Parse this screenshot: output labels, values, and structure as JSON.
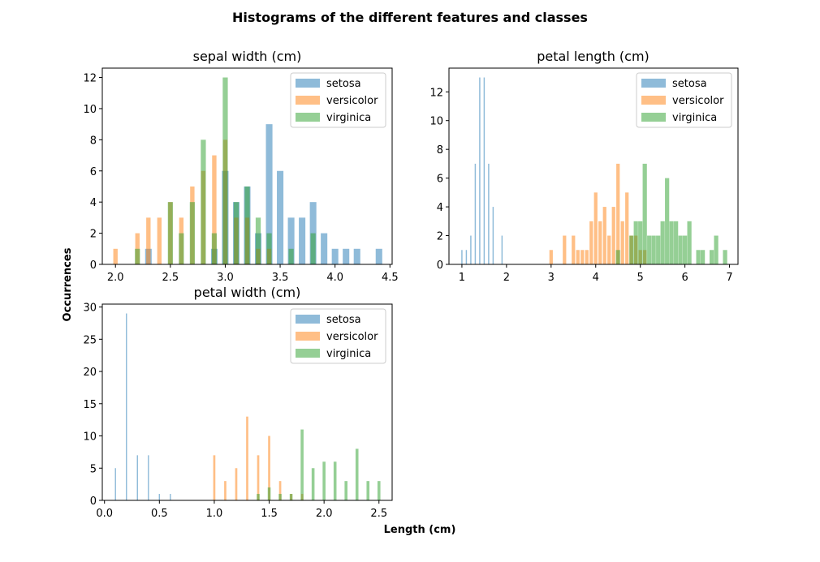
{
  "figure_title": "Histograms of the different features and classes",
  "xlabel": "Length (cm)",
  "ylabel": "Occurrences",
  "colors": {
    "setosa": "#1f77b4",
    "versicolor": "#ff7f0e",
    "virginica": "#2ca02c"
  },
  "bar_alpha": 0.5,
  "chart_data": [
    {
      "type": "bar",
      "title": "sepal width (cm)",
      "xlim": [
        1.88,
        4.52
      ],
      "ylim": [
        0,
        12.6
      ],
      "xticks": [
        2.0,
        2.5,
        3.0,
        3.5,
        4.0,
        4.5
      ],
      "yticks": [
        0,
        2,
        4,
        6,
        8,
        10,
        12
      ],
      "legend_position": "upper right",
      "series": [
        {
          "name": "setosa",
          "bin_width": 0.0596,
          "x": [
            2.3,
            2.9,
            3.0,
            3.1,
            3.2,
            3.3,
            3.4,
            3.5,
            3.6,
            3.7,
            3.8,
            3.9,
            4.0,
            4.1,
            4.2,
            4.4
          ],
          "y": [
            1,
            1,
            6,
            4,
            5,
            2,
            9,
            6,
            3,
            3,
            4,
            2,
            1,
            1,
            1,
            1
          ]
        },
        {
          "name": "versicolor",
          "bin_width": 0.0397,
          "x": [
            2.0,
            2.2,
            2.3,
            2.4,
            2.5,
            2.6,
            2.7,
            2.8,
            2.9,
            3.0,
            3.1,
            3.2,
            3.3,
            3.4
          ],
          "y": [
            1,
            2,
            3,
            3,
            4,
            3,
            5,
            6,
            7,
            8,
            3,
            3,
            1,
            1
          ]
        },
        {
          "name": "virginica",
          "bin_width": 0.0462,
          "x": [
            2.2,
            2.5,
            2.6,
            2.7,
            2.8,
            2.9,
            3.0,
            3.1,
            3.2,
            3.3,
            3.4,
            3.6,
            3.8
          ],
          "y": [
            1,
            4,
            2,
            4,
            8,
            2,
            12,
            4,
            5,
            3,
            2,
            1,
            2
          ]
        }
      ]
    },
    {
      "type": "bar",
      "title": "petal length (cm)",
      "xlim": [
        0.71,
        7.19
      ],
      "ylim": [
        0,
        13.65
      ],
      "xticks": [
        1,
        2,
        3,
        4,
        5,
        6,
        7
      ],
      "yticks": [
        0,
        2,
        4,
        6,
        8,
        10,
        12
      ],
      "legend_position": "upper right",
      "series": [
        {
          "name": "setosa",
          "bin_width": 0.027,
          "x": [
            1.0,
            1.1,
            1.2,
            1.3,
            1.4,
            1.5,
            1.6,
            1.7,
            1.9
          ],
          "y": [
            1,
            1,
            2,
            7,
            13,
            13,
            7,
            4,
            2
          ]
        },
        {
          "name": "versicolor",
          "bin_width": 0.0771,
          "x": [
            3.0,
            3.3,
            3.5,
            3.6,
            3.7,
            3.8,
            3.9,
            4.0,
            4.1,
            4.2,
            4.3,
            4.4,
            4.5,
            4.6,
            4.7,
            4.8,
            4.9,
            5.0,
            5.1
          ],
          "y": [
            1,
            2,
            2,
            1,
            1,
            1,
            3,
            5,
            3,
            4,
            2,
            4,
            7,
            3,
            5,
            2,
            2,
            1,
            1
          ]
        },
        {
          "name": "virginica",
          "bin_width": 0.095,
          "x": [
            4.5,
            4.8,
            4.9,
            5.0,
            5.1,
            5.2,
            5.3,
            5.4,
            5.5,
            5.6,
            5.7,
            5.8,
            5.9,
            6.0,
            6.1,
            6.3,
            6.4,
            6.6,
            6.7,
            6.9
          ],
          "y": [
            1,
            2,
            3,
            3,
            7,
            2,
            2,
            2,
            3,
            6,
            3,
            3,
            2,
            2,
            3,
            1,
            1,
            1,
            2,
            1
          ]
        }
      ]
    },
    {
      "type": "bar",
      "title": "petal width (cm)",
      "xlim": [
        -0.02,
        2.62
      ],
      "ylim": [
        0,
        30.45
      ],
      "xticks": [
        0.0,
        0.5,
        1.0,
        1.5,
        2.0,
        2.5
      ],
      "yticks": [
        0,
        5,
        10,
        15,
        20,
        25,
        30
      ],
      "legend_position": "upper right",
      "series": [
        {
          "name": "setosa",
          "bin_width": 0.0106,
          "x": [
            0.1,
            0.2,
            0.3,
            0.4,
            0.5,
            0.6
          ],
          "y": [
            5,
            29,
            7,
            7,
            1,
            1
          ]
        },
        {
          "name": "versicolor",
          "bin_width": 0.0199,
          "x": [
            1.0,
            1.1,
            1.2,
            1.3,
            1.4,
            1.5,
            1.6,
            1.7,
            1.8
          ],
          "y": [
            7,
            3,
            5,
            13,
            7,
            10,
            3,
            1,
            1
          ]
        },
        {
          "name": "virginica",
          "bin_width": 0.0265,
          "x": [
            1.4,
            1.5,
            1.6,
            1.7,
            1.8,
            1.9,
            2.0,
            2.1,
            2.2,
            2.3,
            2.4,
            2.5
          ],
          "y": [
            1,
            2,
            1,
            1,
            11,
            5,
            6,
            6,
            3,
            8,
            3,
            3
          ]
        }
      ]
    }
  ]
}
